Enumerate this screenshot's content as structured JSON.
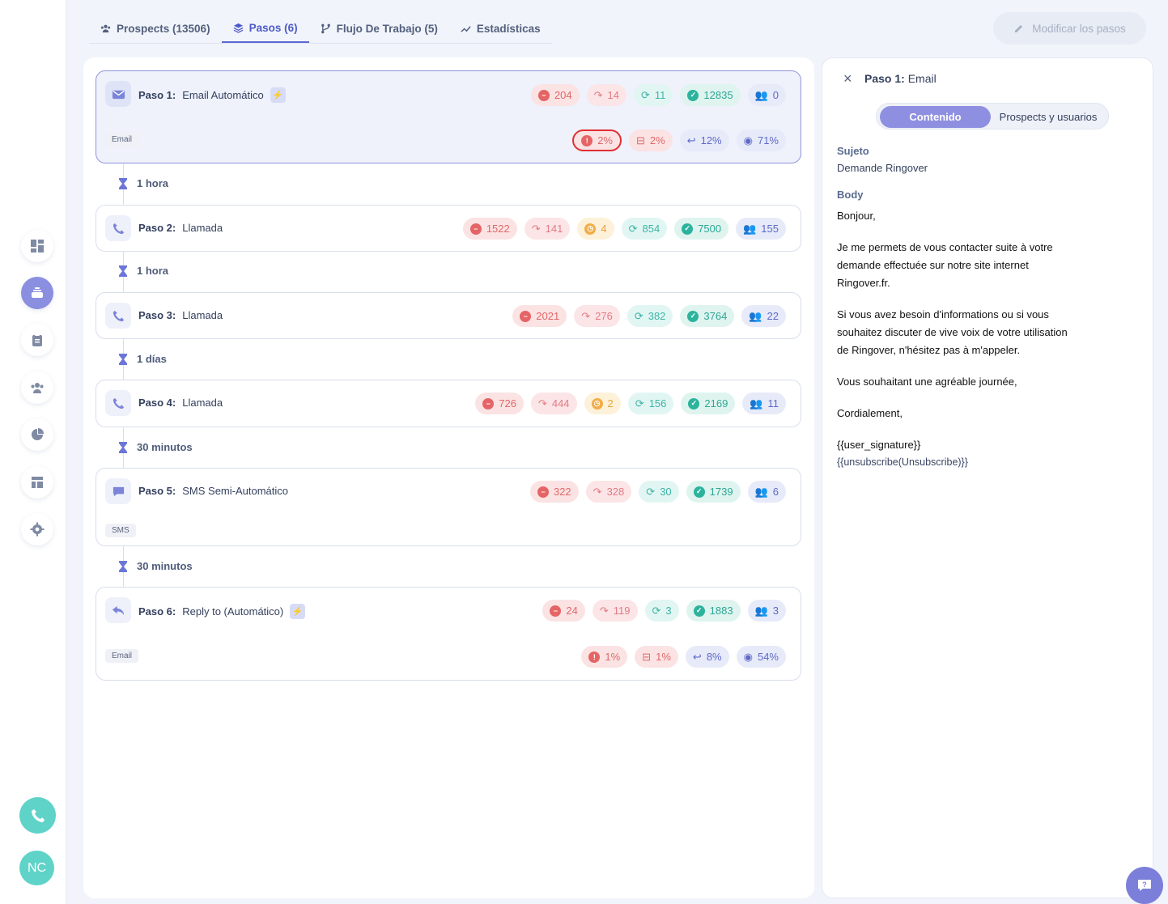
{
  "tabs": [
    {
      "label": "Prospects (13506)",
      "icon": "users-icon"
    },
    {
      "label": "Pasos (6)",
      "icon": "layers-icon",
      "active": true
    },
    {
      "label": "Flujo De Trabajo (5)",
      "icon": "workflow-icon"
    },
    {
      "label": "Estadísticas",
      "icon": "chart-icon"
    }
  ],
  "edit_button": "Modificar los pasos",
  "steps": [
    {
      "num": "Paso 1:",
      "name": "Email Automático",
      "type": "email",
      "auto": true,
      "stats": [
        "204",
        "14",
        "11",
        "12835",
        "0"
      ],
      "badge": "Email",
      "metrics": [
        "2%",
        "2%",
        "12%",
        "71%"
      ]
    },
    {
      "num": "Paso 2:",
      "name": "Llamada",
      "type": "call",
      "stats": [
        "1522",
        "141",
        "4",
        "854",
        "7500",
        "155"
      ]
    },
    {
      "num": "Paso 3:",
      "name": "Llamada",
      "type": "call",
      "stats": [
        "2021",
        "276",
        "382",
        "3764",
        "22"
      ]
    },
    {
      "num": "Paso 4:",
      "name": "Llamada",
      "type": "call",
      "stats": [
        "726",
        "444",
        "2",
        "156",
        "2169",
        "11"
      ]
    },
    {
      "num": "Paso 5:",
      "name": "SMS Semi-Automático",
      "type": "sms",
      "stats": [
        "322",
        "328",
        "30",
        "1739",
        "6"
      ],
      "badge": "SMS"
    },
    {
      "num": "Paso 6:",
      "name": "Reply to (Automático)",
      "type": "reply",
      "auto": true,
      "stats": [
        "24",
        "119",
        "3",
        "1883",
        "3"
      ],
      "badge": "Email",
      "metrics": [
        "1%",
        "1%",
        "8%",
        "54%"
      ]
    }
  ],
  "delays": [
    "1 hora",
    "1 hora",
    "1 días",
    "30 minutos",
    "30 minutos"
  ],
  "detail": {
    "title_bold": "Paso 1:",
    "title_rest": "Email",
    "seg_active": "Contenido",
    "seg_inactive": "Prospects y usuarios",
    "subject_label": "Sujeto",
    "subject_value": "Demande Ringover",
    "body_label": "Body",
    "body": [
      "Bonjour,",
      "Je me permets de vous contacter suite à votre demande effectuée sur notre site internet Ringover.fr.",
      "Si vous avez besoin d'informations ou si vous souhaitez discuter de vive voix de votre utilisation de Ringover, n'hésitez pas à m'appeler.",
      "Vous souhaitant une agréable journée,",
      "Cordialement,",
      "{{user_signature}}",
      "{{unsubscribe(Unsubscribe)}}"
    ]
  },
  "user": {
    "initials": "NC"
  },
  "colors": {
    "accent": "#5c69d2",
    "teal": "#5fd3c8",
    "danger": "#e56466",
    "success": "#2cb39d"
  }
}
